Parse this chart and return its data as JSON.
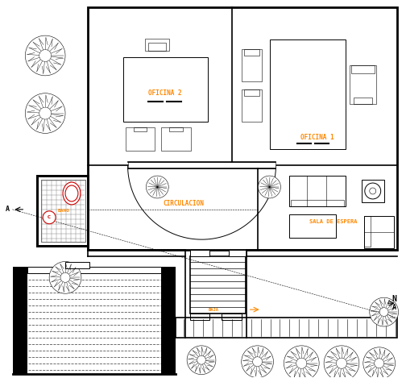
{
  "bg_color": "#ffffff",
  "wall_color": "#000000",
  "figsize": [
    5.04,
    4.69
  ],
  "dpi": 100,
  "labels": {
    "oficina1": "OFICINA 1",
    "oficina2": "OFICINA 2",
    "bano": "BANO",
    "circulacion": "CIRCULACION",
    "sala_espera": "SALA DE ESPERA",
    "baja": "BAJA",
    "north": "N",
    "a_marker": "A"
  },
  "orange": "#FF8800"
}
